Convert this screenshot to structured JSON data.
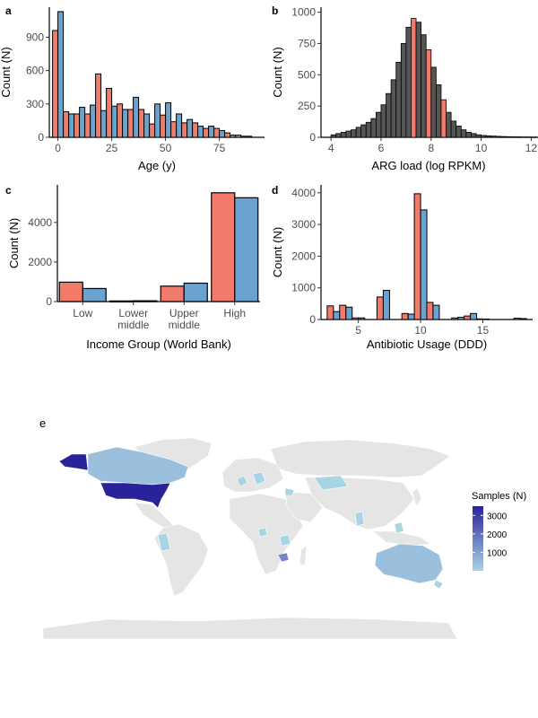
{
  "colors": {
    "red": "#F27A6B",
    "blue": "#6AA3CF",
    "land": "#E5E5E5",
    "ocean": "#FFFFFF",
    "low": "#A8D4E6",
    "high": "#2A2298",
    "mid": "#8F90D1"
  },
  "chart_data": [
    {
      "panel": "a",
      "type": "bar",
      "xlabel": "Age (y)",
      "ylabel": "Count (N)",
      "xlim": [
        -4,
        96
      ],
      "ylim": [
        0,
        1170
      ],
      "xticks": [
        "0",
        "25",
        "50",
        "75"
      ],
      "xtick_values": [
        0,
        25,
        50,
        75
      ],
      "yticks": [
        "0",
        "300",
        "600",
        "900"
      ],
      "ytick_values": [
        0,
        300,
        600,
        900
      ],
      "x": [
        0,
        5,
        10,
        15,
        20,
        25,
        30,
        35,
        40,
        45,
        50,
        55,
        60,
        65,
        70,
        75,
        80,
        85,
        90
      ],
      "series": [
        {
          "color": "red",
          "values": [
            960,
            230,
            210,
            210,
            570,
            440,
            300,
            250,
            250,
            120,
            200,
            140,
            130,
            130,
            80,
            80,
            40,
            20,
            10
          ]
        },
        {
          "color": "blue",
          "values": [
            1130,
            210,
            270,
            290,
            240,
            280,
            250,
            360,
            210,
            300,
            310,
            210,
            160,
            100,
            100,
            60,
            20,
            10,
            0
          ]
        }
      ]
    },
    {
      "panel": "b",
      "type": "bar",
      "xlabel": "ARG load (log RPKM)",
      "ylabel": "Count (N)",
      "xlim": [
        3.6,
        12.2
      ],
      "ylim": [
        0,
        1040
      ],
      "xticks": [
        "4",
        "6",
        "8",
        "10",
        "12"
      ],
      "xtick_values": [
        4,
        6,
        8,
        10,
        12
      ],
      "yticks": [
        "0",
        "250",
        "500",
        "750",
        "1000"
      ],
      "ytick_values": [
        0,
        250,
        500,
        750,
        1000
      ],
      "bin_start": 4.0,
      "bin_width": 0.2,
      "values": [
        20,
        30,
        40,
        50,
        60,
        80,
        100,
        120,
        150,
        200,
        260,
        350,
        460,
        600,
        750,
        880,
        950,
        920,
        820,
        700,
        560,
        420,
        300,
        200,
        130,
        90,
        60,
        40,
        30,
        20,
        15,
        12,
        10,
        8,
        6,
        5,
        4,
        4,
        3,
        3,
        2,
        2,
        2,
        1,
        1,
        1,
        1,
        1,
        1,
        1,
        1,
        1,
        1,
        1,
        1,
        1,
        1,
        1
      ],
      "highlight_bins": [
        16,
        19,
        22
      ],
      "highlight_color": "red"
    },
    {
      "panel": "c",
      "type": "bar",
      "xlabel": "Income Group (World Bank)",
      "ylabel": "Count (N)",
      "ylim": [
        0,
        5900
      ],
      "yticks": [
        "0",
        "2000",
        "4000"
      ],
      "ytick_values": [
        0,
        2000,
        4000
      ],
      "categories": [
        "Low",
        "Lower\nmiddle",
        "Upper\nmiddle",
        "High"
      ],
      "series": [
        {
          "color": "red",
          "values": [
            980,
            30,
            780,
            5500
          ]
        },
        {
          "color": "blue",
          "values": [
            660,
            40,
            930,
            5250
          ]
        }
      ]
    },
    {
      "panel": "d",
      "type": "bar",
      "xlabel": "Antibiotic Usage (DDD)",
      "ylabel": "Count (N)",
      "xlim": [
        2,
        19
      ],
      "ylim": [
        0,
        4250
      ],
      "xticks": [
        "5",
        "10",
        "15"
      ],
      "xtick_values": [
        5,
        10,
        15
      ],
      "yticks": [
        "0",
        "1000",
        "2000",
        "3000",
        "4000"
      ],
      "ytick_values": [
        0,
        1000,
        2000,
        3000,
        4000
      ],
      "x": [
        3,
        4,
        5,
        7,
        9,
        10,
        11,
        13,
        14,
        15,
        18
      ],
      "series": [
        {
          "color": "red",
          "values": [
            430,
            450,
            50,
            710,
            190,
            3970,
            540,
            50,
            110,
            20,
            40
          ]
        },
        {
          "color": "blue",
          "values": [
            250,
            390,
            50,
            920,
            170,
            3460,
            450,
            70,
            190,
            15,
            30
          ]
        }
      ]
    },
    {
      "panel": "e",
      "type": "heatmap",
      "legend_title": "Samples (N)",
      "legend_ticks": [
        "3000",
        "2000",
        "1000"
      ],
      "legend_tick_values": [
        3000,
        2000,
        1000
      ],
      "legend_range": [
        0,
        3500
      ],
      "highlighted_regions": [
        {
          "region": "United States",
          "samples": 3500
        },
        {
          "region": "Alaska",
          "samples": 3500
        },
        {
          "region": "Canada",
          "samples": 400
        },
        {
          "region": "Australia",
          "samples": 400
        },
        {
          "region": "Zambia",
          "samples": 1500
        }
      ]
    }
  ]
}
